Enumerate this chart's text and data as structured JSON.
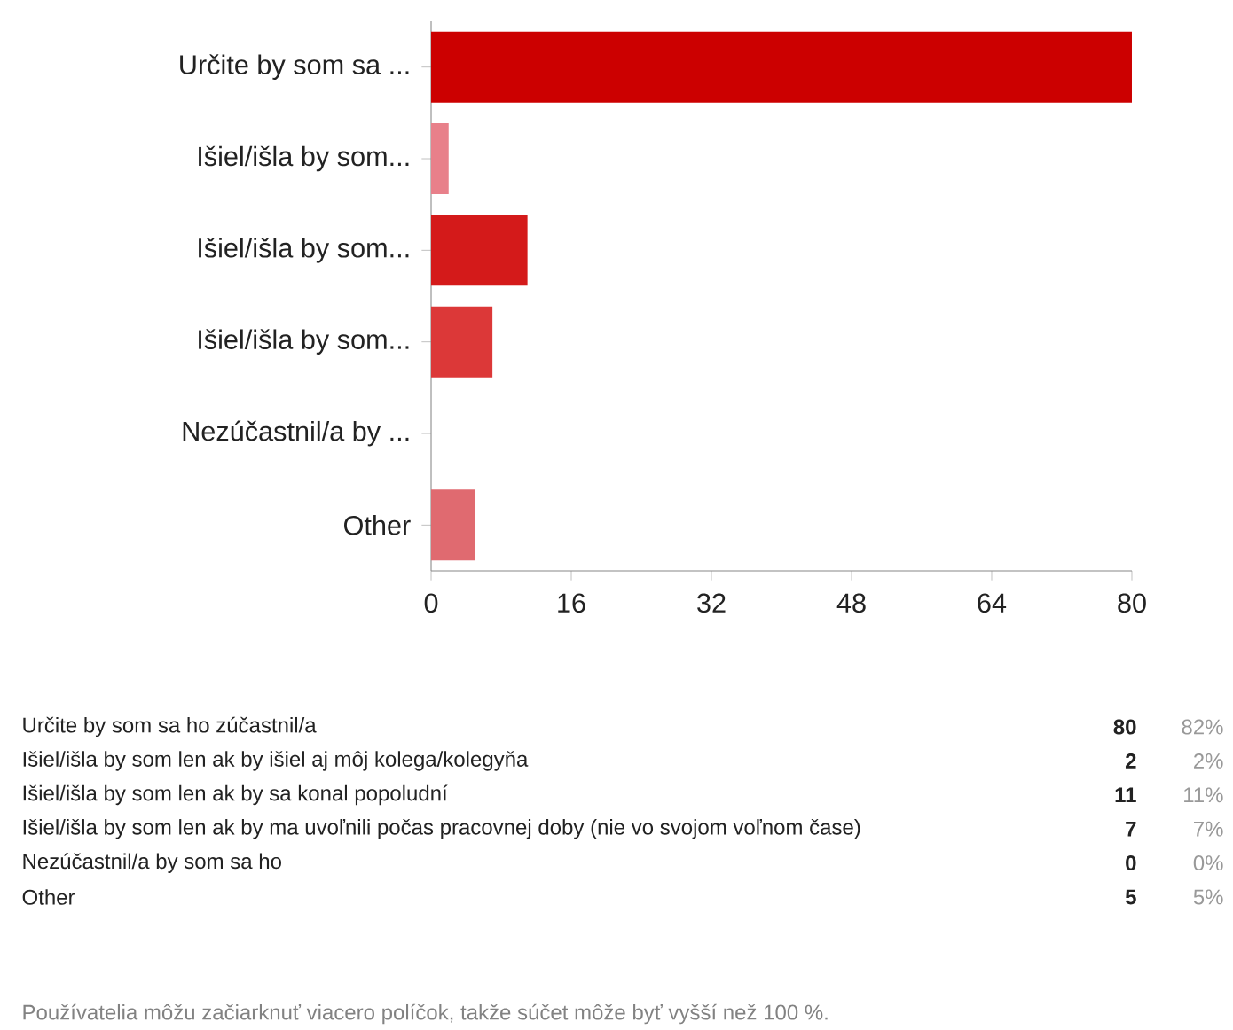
{
  "chart_data": {
    "type": "bar",
    "orientation": "horizontal",
    "categories": [
      "Určite by som sa ...",
      "Išiel/išla by som...",
      "Išiel/išla by som...",
      "Išiel/išla by som...",
      "Nezúčastnil/a by ...",
      "Other"
    ],
    "values": [
      80,
      2,
      11,
      7,
      0,
      5
    ],
    "colors": [
      "#cc0000",
      "#e8808a",
      "#d41a1a",
      "#dc3838",
      "#dd4a4a",
      "#e06a70"
    ],
    "xlim": [
      0,
      80
    ],
    "xticks": [
      0,
      16,
      32,
      48,
      64,
      80
    ],
    "grid": false,
    "annotations": [
      "Určite by som sa ho zúčastnil/a",
      "80",
      "82%",
      "Išiel/išla by som len ak by išiel aj môj kolega/kolegyňa",
      "2",
      "2%",
      "Išiel/išla by som len ak by sa konal popoludní",
      "11",
      "11%",
      "Išiel/išla by som len ak by ma uvoľnili počas pracovnej doby (nie vo svojom voľnom čase)",
      "7",
      "7%",
      "Nezúčastnil/a by som sa ho",
      "0",
      "0%",
      "Other",
      "5",
      "5%",
      "Používatelia môžu začiarknuť viacero políčok, takže súčet môže byť vyšší než 100 %."
    ]
  }
}
